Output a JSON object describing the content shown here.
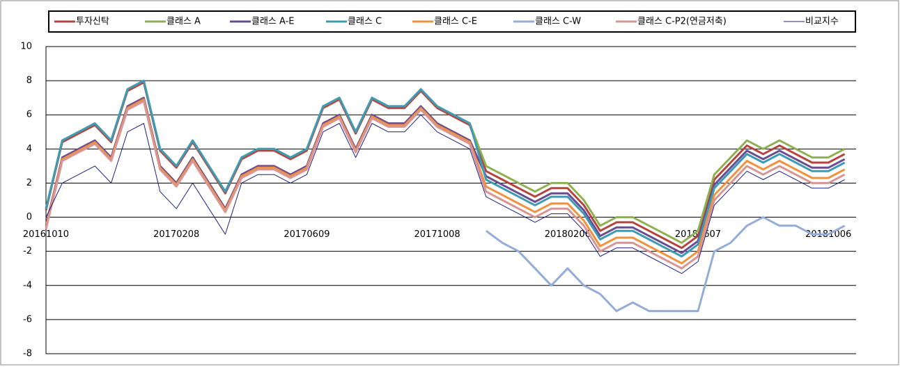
{
  "chart_data": {
    "type": "line",
    "categories": [
      "20161010",
      null,
      null,
      null,
      null,
      null,
      null,
      null,
      "20170208",
      null,
      null,
      null,
      null,
      null,
      null,
      null,
      "20170609",
      null,
      null,
      null,
      null,
      null,
      null,
      null,
      "20171008",
      null,
      null,
      null,
      null,
      null,
      null,
      null,
      "20180206",
      null,
      null,
      null,
      null,
      null,
      null,
      null,
      "20180607",
      null,
      null,
      null,
      null,
      null,
      null,
      null,
      "20181006",
      null
    ],
    "ylim": [
      -8,
      10
    ],
    "yticks": [
      10,
      8,
      6,
      4,
      2,
      0,
      -2,
      -4,
      -6,
      -8
    ],
    "grid": true,
    "legend": "top",
    "series": [
      {
        "name": "투자신탁",
        "color": "#b5443f",
        "width": 3,
        "values": [
          0.4,
          4.4,
          4.9,
          5.4,
          4.4,
          7.4,
          7.9,
          3.9,
          2.9,
          4.4,
          2.9,
          1.4,
          3.4,
          3.9,
          3.9,
          3.4,
          3.9,
          6.4,
          6.9,
          4.9,
          6.9,
          6.4,
          6.4,
          7.4,
          6.4,
          5.9,
          5.4,
          2.7,
          2.2,
          1.7,
          1.2,
          1.7,
          1.7,
          0.7,
          -0.8,
          -0.3,
          -0.3,
          -0.8,
          -1.3,
          -1.8,
          -1.1,
          2.2,
          3.2,
          4.2,
          3.7,
          4.2,
          3.7,
          3.2,
          3.2,
          3.7
        ]
      },
      {
        "name": "클래스 A",
        "color": "#8db050",
        "width": 3,
        "values": [
          0.5,
          4.5,
          5,
          5.5,
          4.5,
          7.5,
          8,
          4,
          3,
          4.5,
          3,
          1.5,
          3.5,
          4,
          4,
          3.5,
          4,
          6.5,
          7,
          5,
          7,
          6.5,
          6.5,
          7.5,
          6.5,
          6,
          5.5,
          3,
          2.5,
          2,
          1.5,
          2,
          2,
          1,
          -0.5,
          0,
          0,
          -0.5,
          -1,
          -1.5,
          -0.8,
          2.5,
          3.5,
          4.5,
          4,
          4.5,
          4,
          3.5,
          3.5,
          4
        ]
      },
      {
        "name": "클래스 A-E",
        "color": "#6a4c93",
        "width": 3,
        "values": [
          -0.5,
          3.5,
          4,
          4.5,
          3.5,
          6.5,
          7,
          3,
          2,
          3.5,
          2,
          0.5,
          2.5,
          3,
          3,
          2.5,
          3,
          5.5,
          6,
          4,
          6,
          5.5,
          5.5,
          6.5,
          5.5,
          5,
          4.5,
          2.4,
          1.9,
          1.4,
          0.9,
          1.4,
          1.4,
          0.4,
          -1.1,
          -0.6,
          -0.6,
          -1.1,
          -1.6,
          -2.1,
          -1.4,
          1.9,
          2.9,
          3.9,
          3.4,
          3.9,
          3.4,
          2.9,
          2.9,
          3.4
        ]
      },
      {
        "name": "클래스 C",
        "color": "#3e9bb5",
        "width": 3,
        "values": [
          0.5,
          4.5,
          5,
          5.5,
          4.5,
          7.5,
          8,
          4,
          3,
          4.5,
          3,
          1.5,
          3.5,
          4,
          4,
          3.5,
          4,
          6.5,
          7,
          5,
          7,
          6.5,
          6.5,
          7.5,
          6.5,
          6,
          5.5,
          2.2,
          1.7,
          1.2,
          0.7,
          1.2,
          1.2,
          0.2,
          -1.3,
          -0.8,
          -0.8,
          -1.3,
          -1.8,
          -2.3,
          -1.6,
          1.7,
          2.7,
          3.7,
          3.2,
          3.7,
          3.2,
          2.7,
          2.7,
          3.2
        ]
      },
      {
        "name": "클래스 C-E",
        "color": "#f0923c",
        "width": 3,
        "values": [
          -0.6,
          3.4,
          3.9,
          4.4,
          3.4,
          6.4,
          6.9,
          2.9,
          1.9,
          3.4,
          1.9,
          0.4,
          2.4,
          2.9,
          2.9,
          2.4,
          2.9,
          5.4,
          5.9,
          3.9,
          5.9,
          5.4,
          5.4,
          6.4,
          5.4,
          4.9,
          4.4,
          1.8,
          1.3,
          0.8,
          0.3,
          0.8,
          0.8,
          -0.2,
          -1.7,
          -1.2,
          -1.2,
          -1.7,
          -2.2,
          -2.7,
          -2,
          1.3,
          2.3,
          3.3,
          2.8,
          3.3,
          2.8,
          2.3,
          2.3,
          2.8
        ]
      },
      {
        "name": "클래스 C-W",
        "color": "#94acd6",
        "width": 3,
        "values": [
          null,
          null,
          null,
          null,
          null,
          null,
          null,
          null,
          null,
          null,
          null,
          null,
          null,
          null,
          null,
          null,
          null,
          null,
          null,
          null,
          null,
          null,
          null,
          null,
          null,
          null,
          null,
          -0.8,
          -1.5,
          -2,
          -3,
          -4,
          -3,
          -4,
          -4.5,
          -5.5,
          -5,
          -5.5,
          -5.5,
          -5.5,
          -5.5,
          -2,
          -1.5,
          -0.5,
          0,
          -0.5,
          -0.5,
          -1,
          -1,
          -0.5
        ]
      },
      {
        "name": "클래스 C-P2(연금저축)",
        "color": "#d99494",
        "width": 3,
        "values": [
          -0.7,
          3.3,
          3.8,
          4.3,
          3.3,
          6.3,
          6.8,
          2.8,
          1.8,
          3.3,
          1.8,
          0.3,
          2.3,
          2.8,
          2.8,
          2.3,
          2.8,
          5.3,
          5.8,
          3.8,
          5.8,
          5.3,
          5.3,
          6.3,
          5.3,
          4.8,
          4.3,
          1.5,
          1,
          0.5,
          0,
          0.5,
          0.5,
          -0.5,
          -2,
          -1.5,
          -1.5,
          -2,
          -2.5,
          -3,
          -2.3,
          1,
          2,
          3,
          2.5,
          3,
          2.5,
          2,
          2,
          2.5
        ]
      },
      {
        "name": "비교지수",
        "color": "#1f1f8a",
        "width": 1,
        "values": [
          0,
          2,
          2.5,
          3,
          2,
          5,
          5.5,
          1.5,
          0.5,
          2,
          0.5,
          -1,
          2,
          2.5,
          2.5,
          2,
          2.5,
          5,
          5.5,
          3.5,
          5.5,
          5,
          5,
          6,
          5,
          4.5,
          4,
          1.2,
          0.7,
          0.2,
          -0.3,
          0.2,
          0.2,
          -0.8,
          -2.3,
          -1.8,
          -1.8,
          -2.3,
          -2.8,
          -3.3,
          -2.6,
          0.7,
          1.7,
          2.7,
          2.2,
          2.7,
          2.2,
          1.7,
          1.7,
          2.2
        ]
      }
    ]
  }
}
